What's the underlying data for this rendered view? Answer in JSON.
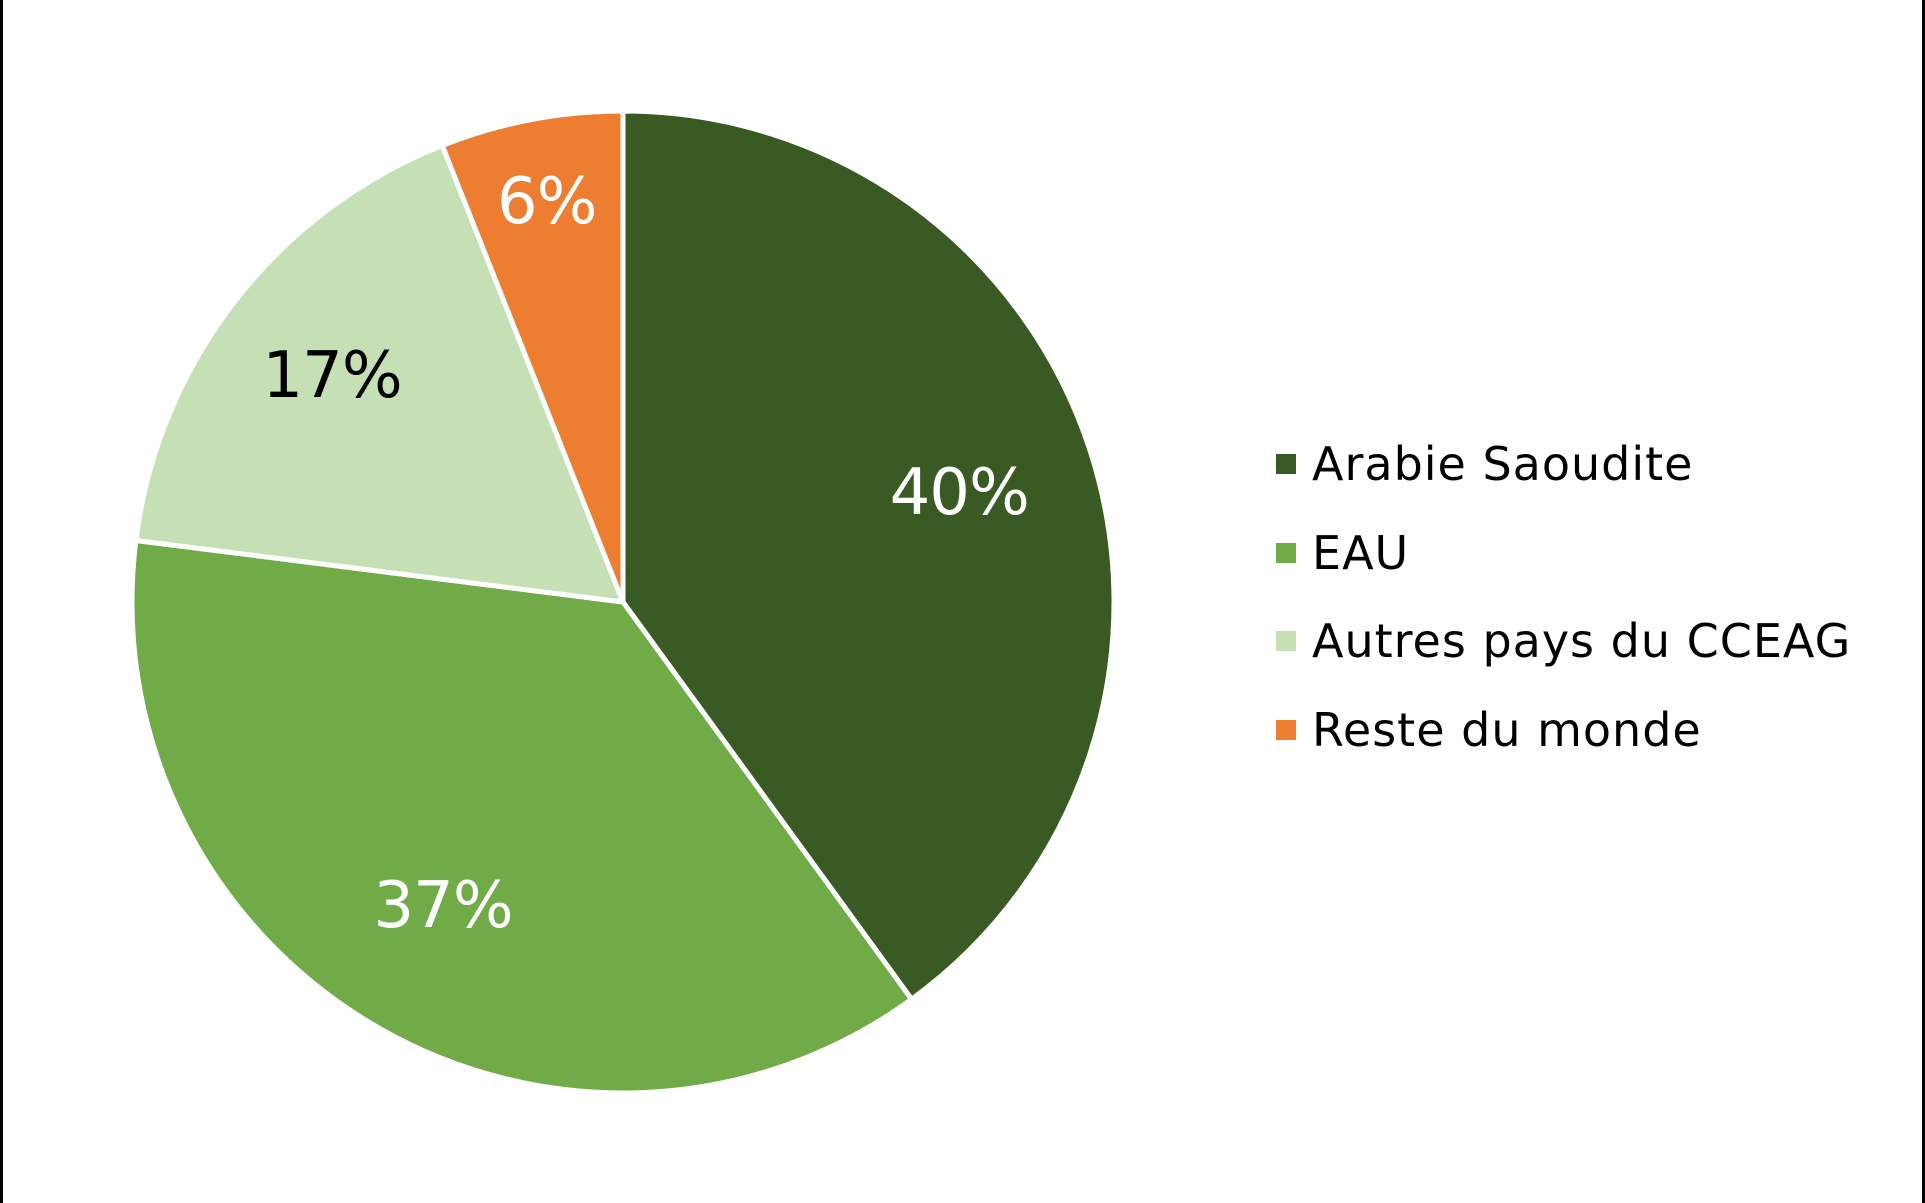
{
  "chart_data": {
    "type": "pie",
    "title": "",
    "start_angle": "12 o'clock, clockwise",
    "categories": [
      "Arabie Saoudite",
      "EAU",
      "Autres pays du CCEAG",
      "Reste du monde"
    ],
    "values": [
      40,
      37,
      17,
      6
    ],
    "labels": [
      "40%",
      "37%",
      "17%",
      "6%"
    ],
    "colors": [
      "#3a5a24",
      "#71ab48",
      "#c5e0b4",
      "#ed7d31"
    ],
    "label_colors": [
      "#ffffff",
      "#ffffff",
      "#000000",
      "#ffffff"
    ],
    "legend_position": "right"
  },
  "legend": {
    "items": [
      {
        "label": "Arabie Saoudite",
        "color": "#3a5a24"
      },
      {
        "label": "EAU",
        "color": "#71ab48"
      },
      {
        "label": "Autres pays du CCEAG",
        "color": "#c5e0b4"
      },
      {
        "label": "Reste du monde",
        "color": "#ed7d31"
      }
    ]
  }
}
